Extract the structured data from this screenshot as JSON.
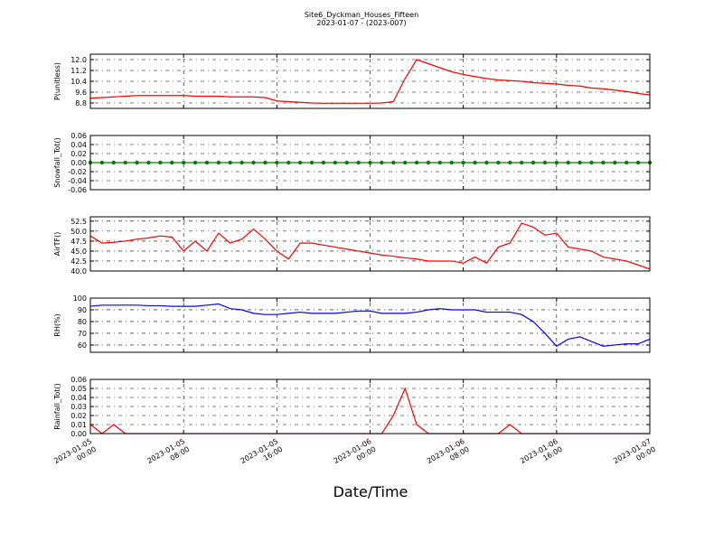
{
  "title": "Site6_Dyckman_Houses_Fifteen",
  "subtitle": "2023-01-07 - (2023-007)",
  "xlabel": "Date/Time",
  "xlim": [
    "2023-01-05 00:00",
    "2023-01-07 00:00"
  ],
  "xticks": [
    "2023-01-05 00:00",
    "2023-01-05 08:00",
    "2023-01-05 16:00",
    "2023-01-06 00:00",
    "2023-01-06 08:00",
    "2023-01-06 16:00",
    "2023-01-07 00:00"
  ],
  "x": [
    "2023-01-05 00:00",
    "2023-01-05 01:00",
    "2023-01-05 02:00",
    "2023-01-05 03:00",
    "2023-01-05 04:00",
    "2023-01-05 05:00",
    "2023-01-05 06:00",
    "2023-01-05 07:00",
    "2023-01-05 08:00",
    "2023-01-05 09:00",
    "2023-01-05 10:00",
    "2023-01-05 11:00",
    "2023-01-05 12:00",
    "2023-01-05 13:00",
    "2023-01-05 14:00",
    "2023-01-05 15:00",
    "2023-01-05 16:00",
    "2023-01-05 17:00",
    "2023-01-05 18:00",
    "2023-01-05 19:00",
    "2023-01-05 20:00",
    "2023-01-05 21:00",
    "2023-01-05 22:00",
    "2023-01-05 23:00",
    "2023-01-06 00:00",
    "2023-01-06 01:00",
    "2023-01-06 02:00",
    "2023-01-06 03:00",
    "2023-01-06 04:00",
    "2023-01-06 05:00",
    "2023-01-06 06:00",
    "2023-01-06 07:00",
    "2023-01-06 08:00",
    "2023-01-06 09:00",
    "2023-01-06 10:00",
    "2023-01-06 11:00",
    "2023-01-06 12:00",
    "2023-01-06 13:00",
    "2023-01-06 14:00",
    "2023-01-06 15:00",
    "2023-01-06 16:00",
    "2023-01-06 17:00",
    "2023-01-06 18:00",
    "2023-01-06 19:00",
    "2023-01-06 20:00",
    "2023-01-06 21:00",
    "2023-01-06 22:00",
    "2023-01-06 23:00",
    "2023-01-07 00:00"
  ],
  "chart_data": [
    {
      "type": "line",
      "ylabel": "P(unitless)",
      "color": "#ff0000",
      "grid": true,
      "ylim": [
        8.4,
        12.4
      ],
      "yticks": [
        8.8,
        9.6,
        10.4,
        11.2,
        {
          "value": 12,
          "label": "12.0"
        }
      ],
      "values": [
        9.15,
        9.2,
        9.25,
        9.3,
        9.35,
        9.35,
        9.35,
        9.35,
        9.35,
        9.3,
        9.3,
        9.3,
        9.25,
        9.25,
        9.25,
        9.2,
        8.95,
        8.9,
        8.85,
        8.8,
        8.78,
        8.78,
        8.78,
        8.78,
        8.78,
        8.8,
        8.9,
        10.6,
        12.0,
        11.7,
        11.4,
        11.1,
        10.9,
        10.75,
        10.6,
        10.5,
        10.45,
        10.4,
        10.3,
        10.25,
        10.2,
        10.1,
        10.05,
        9.9,
        9.85,
        9.75,
        9.65,
        9.5,
        9.4
      ]
    },
    {
      "type": "line",
      "ylabel": "Snowfall_Tot()",
      "color": "#008000",
      "grid": true,
      "marker": true,
      "ylim": [
        -0.06,
        0.06
      ],
      "yticks": [
        -0.06,
        -0.04,
        -0.02,
        {
          "value": 0,
          "label": "0.00"
        },
        0.02,
        0.04,
        0.06
      ],
      "values": [
        0,
        0,
        0,
        0,
        0,
        0,
        0,
        0,
        0,
        0,
        0,
        0,
        0,
        0,
        0,
        0,
        0,
        0,
        0,
        0,
        0,
        0,
        0,
        0,
        0,
        0,
        0,
        0,
        0,
        0,
        0,
        0,
        0,
        0,
        0,
        0,
        0,
        0,
        0,
        0,
        0,
        0,
        0,
        0,
        0,
        0,
        0,
        0,
        0
      ]
    },
    {
      "type": "line",
      "ylabel": "AirTF()",
      "color": "#ff0000",
      "grid": true,
      "ylim": [
        40,
        53.6
      ],
      "yticks": [
        {
          "value": 40,
          "label": "40.0"
        },
        42.5,
        {
          "value": 45,
          "label": "45.0"
        },
        47.5,
        {
          "value": 50,
          "label": "50.0"
        },
        52.5
      ],
      "values": [
        48.8,
        47,
        47.2,
        47.5,
        48,
        48.3,
        48.8,
        48.5,
        45,
        47.5,
        45,
        49.5,
        47,
        48,
        50.5,
        48,
        45,
        43,
        47,
        47,
        46.5,
        46,
        45.5,
        45,
        44.5,
        44,
        43.7,
        43.3,
        43,
        42.5,
        42.5,
        42.5,
        42,
        43.5,
        42,
        46,
        47,
        52,
        51,
        49,
        49.5,
        46,
        45.5,
        45,
        43.5,
        43,
        42.5,
        41.5,
        40.5
      ]
    },
    {
      "type": "line",
      "ylabel": "RH(%)",
      "color": "#0000ff",
      "grid": true,
      "ylim": [
        53.8,
        100
      ],
      "yticks": [
        60,
        70,
        80,
        90,
        100
      ],
      "values": [
        93,
        94,
        94,
        94,
        94,
        93.5,
        93.5,
        93,
        93,
        93,
        94,
        95,
        91,
        90,
        87,
        86,
        86,
        87,
        88,
        87,
        87,
        87,
        88,
        89,
        89,
        87,
        87,
        87,
        88,
        90,
        91,
        90,
        90,
        90,
        88,
        88,
        88,
        86,
        80,
        70,
        59,
        65,
        67,
        63,
        59,
        60,
        61,
        61,
        65
      ]
    },
    {
      "type": "line",
      "ylabel": "Rainfall_Tot()",
      "color": "#ff0000",
      "grid": true,
      "ylim": [
        0,
        0.06
      ],
      "yticks": [
        {
          "value": 0,
          "label": "0.00"
        },
        0.01,
        0.02,
        0.03,
        0.04,
        0.05,
        0.06
      ],
      "values": [
        0.01,
        0,
        0.01,
        0,
        0,
        0,
        0,
        0,
        0,
        0,
        0,
        0,
        0,
        0,
        0,
        0,
        0,
        0,
        0,
        0,
        0,
        0,
        0,
        0,
        0,
        0,
        0.02,
        0.05,
        0.01,
        0,
        0,
        0,
        0,
        0,
        0,
        0,
        0.01,
        0,
        0,
        0,
        0,
        0,
        0,
        0,
        0,
        0,
        0,
        0,
        0
      ]
    }
  ]
}
